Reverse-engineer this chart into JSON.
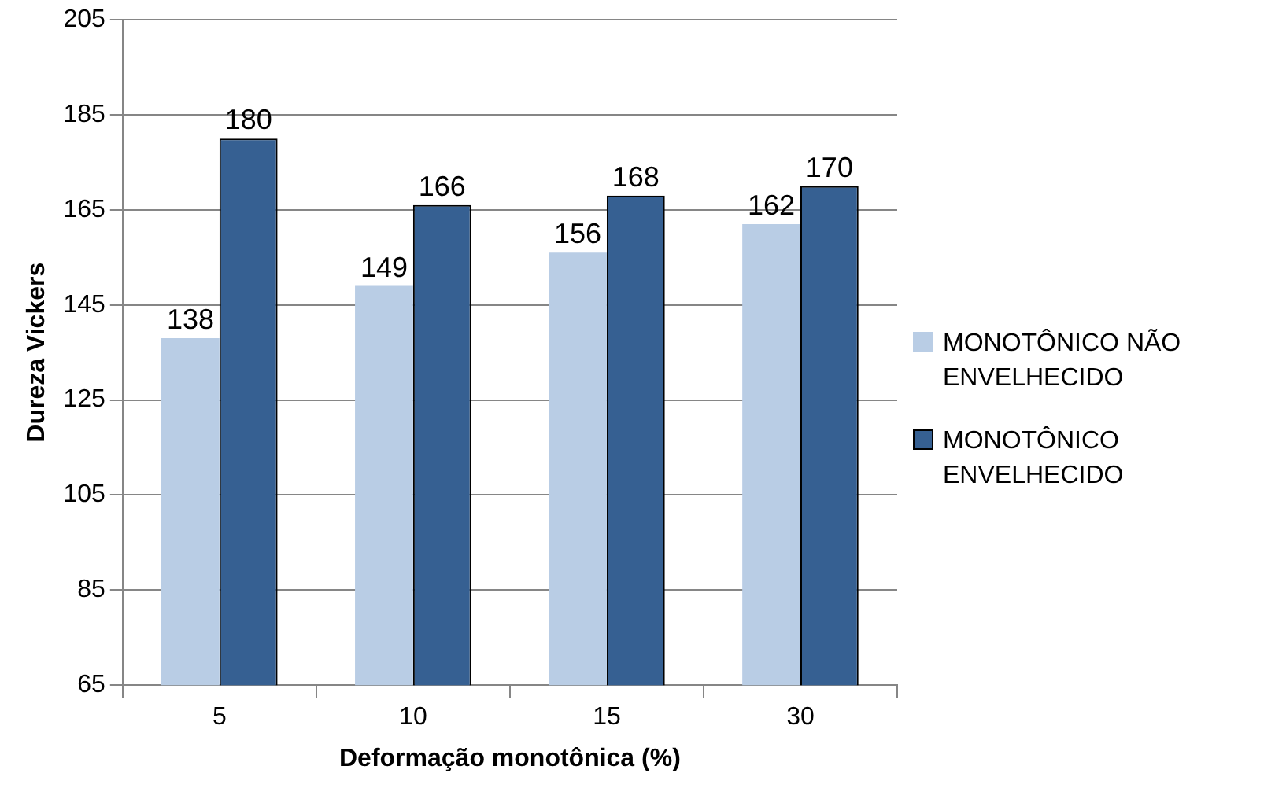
{
  "chart_data": {
    "type": "bar",
    "xlabel": "Deformação monotônica (%)",
    "ylabel": "Dureza Vickers",
    "categories": [
      "5",
      "10",
      "15",
      "30"
    ],
    "series": [
      {
        "name": "MONOTÔNICO NÃO ENVELHECIDO",
        "color": "#b9cde5",
        "values": [
          138,
          149,
          156,
          162
        ]
      },
      {
        "name": "MONOTÔNICO ENVELHECIDO",
        "color": "#366092",
        "values": [
          180,
          166,
          168,
          170
        ]
      }
    ],
    "ylim": [
      65,
      205
    ],
    "yticks": [
      65,
      85,
      105,
      125,
      145,
      165,
      185,
      205
    ],
    "grid": "y",
    "legend": "right",
    "data_labels": true
  }
}
